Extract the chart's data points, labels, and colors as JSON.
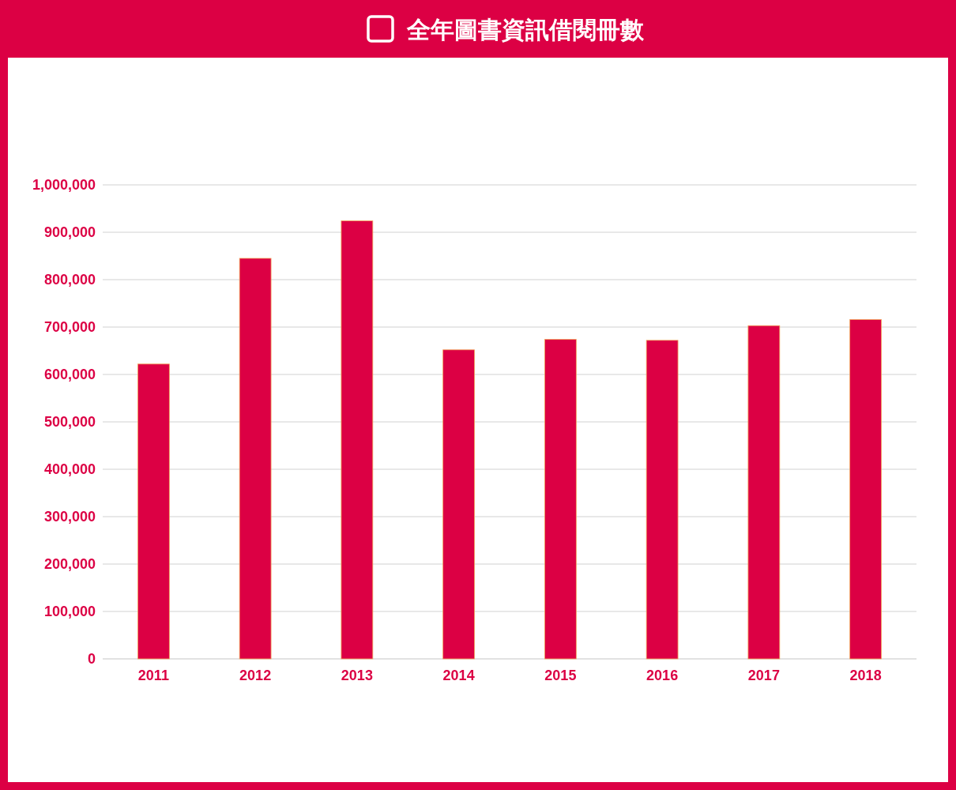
{
  "chart_data": {
    "type": "bar",
    "title": "全年圖書資訊借閱冊數",
    "categories": [
      "2011",
      "2012",
      "2013",
      "2014",
      "2015",
      "2016",
      "2017",
      "2018"
    ],
    "values": [
      622000,
      845000,
      924000,
      652000,
      674000,
      672000,
      703000,
      716000
    ],
    "color": "#dc0044",
    "ylim": [
      0,
      1000000
    ],
    "yticks": [
      0,
      {
        "value": 100000,
        "label": "100,000"
      },
      {
        "value": 200000,
        "label": "200,000"
      },
      {
        "value": 300000,
        "label": "300,000"
      },
      {
        "value": 400000,
        "label": "400,000"
      },
      {
        "value": 500000,
        "label": "500,000"
      },
      {
        "value": 600000,
        "label": "600,000"
      },
      {
        "value": 700000,
        "label": "700,000"
      },
      {
        "value": 800000,
        "label": "800,000"
      },
      {
        "value": 900000,
        "label": "900,000"
      },
      {
        "value": 1000000,
        "label": "1,000,000"
      }
    ],
    "grid": "y"
  }
}
